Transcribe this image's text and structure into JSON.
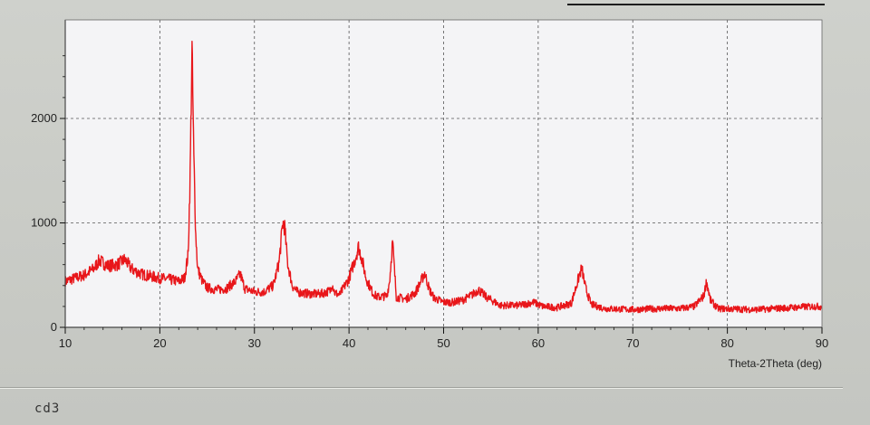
{
  "window": {
    "sample_name": "cd3"
  },
  "chart_data": {
    "type": "line",
    "title": "",
    "xlabel": "Theta-2Theta (deg)",
    "ylabel": "",
    "xlim": [
      10,
      90
    ],
    "ylim": [
      0,
      2000
    ],
    "x_ticks": [
      10,
      20,
      30,
      40,
      50,
      60,
      70,
      80,
      90
    ],
    "y_ticks": [
      0,
      1000,
      2000
    ],
    "grid": true,
    "grid_style": "dashed",
    "legend": "none",
    "colors": {
      "series": "#e8161a",
      "plot_bg": "#f4f4f6",
      "grid": "#555555"
    },
    "series": [
      {
        "x": [
          10,
          11,
          12,
          13,
          13.6,
          14.5,
          15.5,
          16.3,
          17,
          18,
          19,
          20,
          21,
          22,
          22.6,
          23,
          23.2,
          23.4,
          23.6,
          23.8,
          24,
          24.5,
          25,
          26,
          27,
          28,
          28.5,
          29,
          30,
          31,
          32,
          32.6,
          33,
          33.2,
          33.5,
          34,
          34.5,
          35,
          36,
          37,
          38,
          38.2,
          38.5,
          39,
          40,
          40.6,
          41,
          41.3,
          41.8,
          42.5,
          43,
          44,
          44.3,
          44.6,
          45,
          46,
          47,
          47.5,
          48,
          48.5,
          49,
          50,
          51,
          52,
          53,
          53.7,
          54.5,
          56,
          58,
          59.5,
          60.5,
          62,
          63.5,
          64.3,
          64.6,
          65,
          65.6,
          67,
          70,
          73,
          75,
          76.5,
          77.5,
          77.8,
          78.2,
          79,
          81,
          83,
          85,
          87,
          89,
          90
        ],
        "y": [
          440,
          470,
          500,
          560,
          640,
          590,
          600,
          650,
          560,
          510,
          490,
          470,
          460,
          440,
          470,
          700,
          1450,
          2650,
          1600,
          880,
          560,
          440,
          380,
          360,
          370,
          440,
          510,
          370,
          340,
          340,
          400,
          620,
          1000,
          960,
          620,
          400,
          340,
          330,
          320,
          320,
          350,
          420,
          330,
          310,
          470,
          640,
          770,
          680,
          470,
          330,
          290,
          300,
          450,
          820,
          290,
          270,
          330,
          420,
          520,
          360,
          280,
          240,
          240,
          260,
          310,
          360,
          290,
          210,
          210,
          240,
          200,
          190,
          230,
          480,
          570,
          380,
          220,
          180,
          170,
          180,
          180,
          200,
          300,
          440,
          260,
          180,
          175,
          170,
          180,
          190,
          200,
          200
        ]
      }
    ]
  }
}
